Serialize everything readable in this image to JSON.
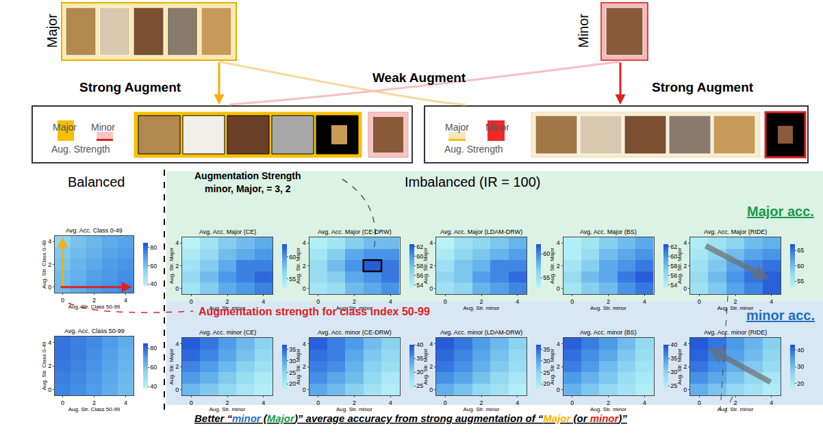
{
  "diagram": {
    "major_label": "Major",
    "minor_label": "Minor",
    "left_arrow": "Strong Augment",
    "middle_arrow": "Weak Augment",
    "right_arrow": "Strong Augment",
    "left_box": {
      "labels": [
        "Major",
        "Minor"
      ],
      "caption": "Aug. Strength"
    },
    "right_box": {
      "labels": [
        "Major",
        "Minor"
      ],
      "caption": "Aug. Strength"
    },
    "balanced": "Balanced",
    "imbalanced": "Imbalanced (IR = 100)",
    "callout": [
      "Augmentation Strength",
      "minor, Major, = 3, 2"
    ],
    "major_acc": "Major acc.",
    "minor_acc": "minor acc.",
    "red_note": "Augmentation strength for class index 50-99",
    "bottom_note": [
      {
        "text": "Better “",
        "color": "#000000"
      },
      {
        "text": "minor",
        "color": "#1f6fc0"
      },
      {
        "text": " (",
        "color": "#000000"
      },
      {
        "text": "Major",
        "color": "#1a9a4a"
      },
      {
        "text": ")” average accuracy from strong augmentation of “",
        "color": "#000000"
      },
      {
        "text": "Major",
        "color": "#f0b400"
      },
      {
        "text": " (or ",
        "color": "#000000"
      },
      {
        "text": "minor",
        "color": "#e02020"
      },
      {
        "text": ")”",
        "color": "#000000"
      }
    ]
  },
  "chart_data": [
    {
      "type": "heatmap",
      "title": "Avg. Acc. Class 0-49",
      "x_label": "Aug. Str. Class 50-99",
      "y_label": "Aug. Str. Class 0-49",
      "x": [
        0,
        1,
        2,
        3,
        4
      ],
      "y": [
        0,
        1,
        2,
        3,
        4
      ],
      "xlim": [
        -0.5,
        4.5
      ],
      "ylim": [
        -0.5,
        4.5
      ],
      "xticks": [
        0,
        2,
        4
      ],
      "yticks": [
        0,
        2,
        4
      ],
      "cells": [
        [
          62,
          66,
          70,
          72,
          74
        ],
        [
          62,
          65,
          69,
          71,
          73
        ],
        [
          60,
          64,
          67,
          70,
          72
        ],
        [
          58,
          62,
          65,
          68,
          70
        ],
        [
          55,
          60,
          63,
          66,
          68
        ]
      ],
      "zlim": [
        38,
        85
      ],
      "zticks": [
        40,
        60,
        80
      ]
    },
    {
      "type": "heatmap",
      "title": "Avg. Acc. Class 50-99",
      "x_label": "Aug. Str. Class 50-99",
      "y_label": "Aug. Str. Class 0-49",
      "x": [
        0,
        1,
        2,
        3,
        4
      ],
      "y": [
        0,
        1,
        2,
        3,
        4
      ],
      "xlim": [
        -0.5,
        4.5
      ],
      "ylim": [
        -0.5,
        4.5
      ],
      "xticks": [
        0,
        2,
        4
      ],
      "yticks": [
        0,
        2,
        4
      ],
      "cells": [
        [
          75,
          73,
          70,
          66,
          62
        ],
        [
          76,
          74,
          71,
          67,
          63
        ],
        [
          77,
          75,
          72,
          68,
          64
        ],
        [
          78,
          76,
          73,
          69,
          65
        ],
        [
          78,
          76,
          74,
          70,
          66
        ]
      ],
      "zlim": [
        38,
        85
      ],
      "zticks": [
        40,
        60,
        80
      ]
    },
    {
      "type": "heatmap",
      "title": "Avg. Acc. Major (CE)",
      "x_label": "Aug. Str. minor",
      "y_label": "Aug. Str. Major",
      "x": [
        0,
        1,
        2,
        3,
        4
      ],
      "y": [
        0,
        1,
        2,
        3,
        4
      ],
      "xlim": [
        -0.5,
        4.5
      ],
      "ylim": [
        -0.5,
        4.5
      ],
      "xticks": [
        0,
        2,
        4
      ],
      "yticks": [
        0,
        2,
        4
      ],
      "cells": [
        [
          55,
          57,
          59,
          60,
          61
        ],
        [
          56,
          58,
          60,
          61,
          62
        ],
        [
          55,
          57,
          59,
          61,
          61
        ],
        [
          54,
          56,
          58,
          59,
          60
        ],
        [
          53,
          55,
          57,
          58,
          59
        ]
      ],
      "zlim": [
        53,
        63
      ],
      "zticks": [
        55,
        60
      ]
    },
    {
      "type": "heatmap",
      "title": "Avg. Acc. Major (CE-DRW)",
      "x_label": "Aug. Str. minor",
      "y_label": "Aug. Str. Major",
      "x": [
        0,
        1,
        2,
        3,
        4
      ],
      "y": [
        0,
        1,
        2,
        3,
        4
      ],
      "xlim": [
        -0.5,
        4.5
      ],
      "ylim": [
        -0.5,
        4.5
      ],
      "xticks": [
        0,
        2,
        4
      ],
      "yticks": [
        0,
        2,
        4
      ],
      "cells": [
        [
          55,
          56,
          58,
          59,
          60
        ],
        [
          56,
          57,
          59,
          60,
          61
        ],
        [
          56,
          58,
          60,
          62,
          61
        ],
        [
          55,
          57,
          59,
          60,
          60
        ],
        [
          54,
          55,
          57,
          58,
          58
        ]
      ],
      "zlim": [
        53.5,
        62.5
      ],
      "zticks": [
        54,
        56,
        58,
        60,
        62
      ],
      "highlight": [
        3,
        2
      ]
    },
    {
      "type": "heatmap",
      "title": "Avg. Acc. Major (LDAM-DRW)",
      "x_label": "Aug. Str. minor",
      "y_label": "Aug. Str. Major",
      "x": [
        0,
        1,
        2,
        3,
        4
      ],
      "y": [
        0,
        1,
        2,
        3,
        4
      ],
      "xlim": [
        -0.5,
        4.5
      ],
      "ylim": [
        -0.5,
        4.5
      ],
      "xticks": [
        0,
        2,
        4
      ],
      "yticks": [
        0,
        2,
        4
      ],
      "cells": [
        [
          55,
          56,
          58,
          59,
          60
        ],
        [
          56,
          57,
          59,
          60,
          61
        ],
        [
          55,
          57,
          58,
          60,
          60
        ],
        [
          54,
          56,
          57,
          58,
          59
        ],
        [
          53,
          55,
          56,
          57,
          58
        ]
      ],
      "zlim": [
        53,
        62
      ],
      "zticks": [
        55,
        60
      ]
    },
    {
      "type": "heatmap",
      "title": "Avg. Acc. Major (BS)",
      "x_label": "Aug. Str. minor",
      "y_label": "Aug. Str. Major",
      "x": [
        0,
        1,
        2,
        3,
        4
      ],
      "y": [
        0,
        1,
        2,
        3,
        4
      ],
      "xlim": [
        -0.5,
        4.5
      ],
      "ylim": [
        -0.5,
        4.5
      ],
      "xticks": [
        0,
        2,
        4
      ],
      "yticks": [
        0,
        2,
        4
      ],
      "cells": [
        [
          55,
          57,
          58,
          60,
          61
        ],
        [
          56,
          58,
          59,
          61,
          62
        ],
        [
          55,
          57,
          59,
          60,
          61
        ],
        [
          54,
          56,
          58,
          59,
          60
        ],
        [
          54,
          55,
          57,
          58,
          59
        ]
      ],
      "zlim": [
        53.5,
        62.5
      ],
      "zticks": [
        54,
        56,
        58,
        60,
        62
      ]
    },
    {
      "type": "heatmap",
      "title": "Avg. Acc. Major (RIDE)",
      "x_label": "Aug. Str. minor",
      "y_label": "Aug. Str. Major",
      "x": [
        0,
        1,
        2,
        3,
        4
      ],
      "y": [
        0,
        1,
        2,
        3,
        4
      ],
      "xlim": [
        -0.5,
        4.5
      ],
      "ylim": [
        -0.5,
        4.5
      ],
      "xticks": [
        0,
        2,
        4
      ],
      "yticks": [
        0,
        2,
        4
      ],
      "cells": [
        [
          56,
          59,
          62,
          64,
          66
        ],
        [
          57,
          60,
          63,
          65,
          66
        ],
        [
          56,
          59,
          62,
          64,
          65
        ],
        [
          55,
          58,
          60,
          62,
          63
        ],
        [
          54,
          56,
          58,
          60,
          61
        ]
      ],
      "zlim": [
        53,
        67
      ],
      "zticks": [
        55,
        60,
        65
      ]
    },
    {
      "type": "heatmap",
      "title": "Avg. Acc. minor (CE)",
      "x_label": "Aug. Str. minor",
      "y_label": "Aug. Str. Major",
      "x": [
        0,
        1,
        2,
        3,
        4
      ],
      "y": [
        0,
        1,
        2,
        3,
        4
      ],
      "xlim": [
        -0.5,
        4.5
      ],
      "ylim": [
        -0.5,
        4.5
      ],
      "xticks": [
        0,
        2,
        4
      ],
      "yticks": [
        0,
        2,
        4
      ],
      "cells": [
        [
          28,
          26,
          24,
          21,
          19
        ],
        [
          31,
          29,
          26,
          23,
          20
        ],
        [
          33,
          31,
          28,
          25,
          22
        ],
        [
          35,
          33,
          30,
          27,
          24
        ],
        [
          36,
          34,
          31,
          28,
          25
        ]
      ],
      "zlim": [
        18,
        37
      ],
      "zticks": [
        20,
        25,
        30,
        35
      ]
    },
    {
      "type": "heatmap",
      "title": "Avg. Acc. minor (CE-DRW)",
      "x_label": "Aug. Str. minor",
      "y_label": "Aug. Str. Major",
      "x": [
        0,
        1,
        2,
        3,
        4
      ],
      "y": [
        0,
        1,
        2,
        3,
        4
      ],
      "xlim": [
        -0.5,
        4.5
      ],
      "ylim": [
        -0.5,
        4.5
      ],
      "xticks": [
        0,
        2,
        4
      ],
      "yticks": [
        0,
        2,
        4
      ],
      "cells": [
        [
          34,
          32,
          30,
          27,
          25
        ],
        [
          36,
          34,
          32,
          29,
          26
        ],
        [
          37,
          36,
          33,
          30,
          28
        ],
        [
          38,
          37,
          34,
          31,
          29
        ],
        [
          39,
          37,
          35,
          32,
          30
        ]
      ],
      "zlim": [
        24,
        40
      ],
      "zticks": [
        25,
        30,
        35,
        40
      ]
    },
    {
      "type": "heatmap",
      "title": "Avg. Acc. minor (LDAM-DRW)",
      "x_label": "Aug. Str. minor",
      "y_label": "Aug. Str. Major",
      "x": [
        0,
        1,
        2,
        3,
        4
      ],
      "y": [
        0,
        1,
        2,
        3,
        4
      ],
      "xlim": [
        -0.5,
        4.5
      ],
      "ylim": [
        -0.5,
        4.5
      ],
      "xticks": [
        0,
        2,
        4
      ],
      "yticks": [
        0,
        2,
        4
      ],
      "cells": [
        [
          29,
          27,
          24,
          22,
          19
        ],
        [
          32,
          30,
          27,
          24,
          21
        ],
        [
          34,
          32,
          29,
          26,
          23
        ],
        [
          35,
          33,
          30,
          27,
          24
        ],
        [
          36,
          34,
          31,
          28,
          25
        ]
      ],
      "zlim": [
        18,
        37
      ],
      "zticks": [
        20,
        25,
        30,
        35
      ]
    },
    {
      "type": "heatmap",
      "title": "Avg. Acc. minor (BS)",
      "x_label": "Aug. Str. minor",
      "y_label": "Aug. Str. Major",
      "x": [
        0,
        1,
        2,
        3,
        4
      ],
      "y": [
        0,
        1,
        2,
        3,
        4
      ],
      "xlim": [
        -0.5,
        4.5
      ],
      "ylim": [
        -0.5,
        4.5
      ],
      "xticks": [
        0,
        2,
        4
      ],
      "yticks": [
        0,
        2,
        4
      ],
      "cells": [
        [
          33,
          31,
          29,
          27,
          25
        ],
        [
          35,
          33,
          31,
          28,
          26
        ],
        [
          37,
          35,
          32,
          30,
          27
        ],
        [
          38,
          36,
          34,
          31,
          28
        ],
        [
          39,
          37,
          35,
          32,
          29
        ]
      ],
      "zlim": [
        24,
        40
      ],
      "zticks": [
        25,
        30,
        35,
        40
      ]
    },
    {
      "type": "heatmap",
      "title": "Avg. Acc. minor (RIDE)",
      "x_label": "Aug. Str. minor",
      "y_label": "Aug. Str. Major",
      "x": [
        0,
        1,
        2,
        3,
        4
      ],
      "y": [
        0,
        1,
        2,
        3,
        4
      ],
      "xlim": [
        -0.5,
        4.5
      ],
      "ylim": [
        -0.5,
        4.5
      ],
      "xticks": [
        0,
        2,
        4
      ],
      "yticks": [
        0,
        2,
        4
      ],
      "cells": [
        [
          32,
          29,
          25,
          22,
          19
        ],
        [
          36,
          33,
          29,
          25,
          21
        ],
        [
          39,
          36,
          32,
          28,
          24
        ],
        [
          41,
          38,
          34,
          30,
          26
        ],
        [
          42,
          39,
          35,
          31,
          27
        ]
      ],
      "zlim": [
        17,
        43
      ],
      "zticks": [
        20,
        30,
        40
      ]
    }
  ]
}
